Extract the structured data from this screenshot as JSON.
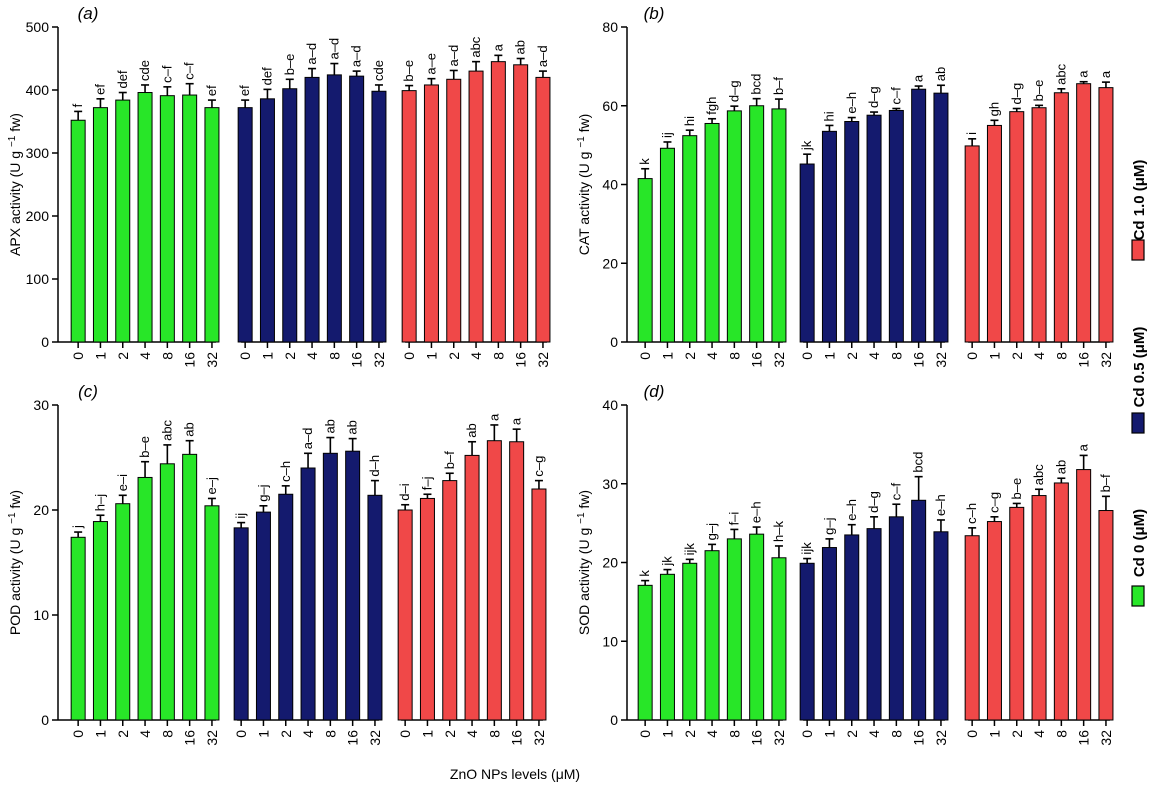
{
  "chart_data": [
    {
      "type": "bar",
      "panel": "(a)",
      "ylabel": "APX activity (U g⁻¹ fw)",
      "ylim": [
        0,
        500
      ],
      "yticks": [
        0,
        100,
        200,
        300,
        400,
        500
      ],
      "groups": [
        {
          "name": "Cd 0 (μM)",
          "categories": [
            "0",
            "1",
            "2",
            "4",
            "8",
            "16",
            "32"
          ],
          "values": [
            352,
            372,
            384,
            396,
            391,
            392,
            372
          ],
          "errors": [
            14,
            14,
            12,
            12,
            14,
            18,
            12
          ],
          "labels": [
            "f",
            "ef",
            "def",
            "cde",
            "c–f",
            "c–f",
            "ef"
          ]
        },
        {
          "name": "Cd 0.5 (μM)",
          "categories": [
            "0",
            "1",
            "2",
            "4",
            "8",
            "16",
            "32"
          ],
          "values": [
            372,
            386,
            402,
            420,
            424,
            422,
            398
          ],
          "errors": [
            12,
            15,
            15,
            14,
            18,
            8,
            10
          ],
          "labels": [
            "ef",
            "def",
            "b–e",
            "a–d",
            "a–d",
            "a–d",
            "cde"
          ]
        },
        {
          "name": "Cd 1.0 (μM)",
          "categories": [
            "0",
            "1",
            "2",
            "4",
            "8",
            "16",
            "32"
          ],
          "values": [
            399,
            408,
            417,
            430,
            445,
            440,
            420
          ],
          "errors": [
            8,
            10,
            14,
            15,
            10,
            10,
            10
          ],
          "labels": [
            "b–e",
            "a–e",
            "a–d",
            "abc",
            "a",
            "ab",
            "a–d"
          ]
        }
      ]
    },
    {
      "type": "bar",
      "panel": "(b)",
      "ylabel": "CAT activity (U g⁻¹ fw)",
      "ylim": [
        0,
        80
      ],
      "yticks": [
        0,
        20,
        40,
        60,
        80
      ],
      "groups": [
        {
          "name": "Cd 0 (μM)",
          "categories": [
            "0",
            "1",
            "2",
            "4",
            "8",
            "16",
            "32"
          ],
          "values": [
            41.5,
            49.2,
            52.4,
            55.5,
            58.7,
            60,
            59.2
          ],
          "errors": [
            2.5,
            1.6,
            1.4,
            1.2,
            1.2,
            1.8,
            2.5
          ],
          "labels": [
            "k",
            "ij",
            "hi",
            "fgh",
            "d–g",
            "bcd",
            "b–f"
          ]
        },
        {
          "name": "Cd 0.5 (μM)",
          "categories": [
            "0",
            "1",
            "2",
            "4",
            "8",
            "16",
            "32"
          ],
          "values": [
            45.2,
            53.5,
            56,
            57.6,
            58.8,
            64.2,
            63.2
          ],
          "errors": [
            2.5,
            1.5,
            1,
            0.8,
            0.5,
            0.8,
            2
          ],
          "labels": [
            "jk",
            "hi",
            "e–h",
            "d–g",
            "c–f",
            "a",
            "ab"
          ]
        },
        {
          "name": "Cd 1.0 (μM)",
          "categories": [
            "0",
            "1",
            "2",
            "4",
            "8",
            "16",
            "32"
          ],
          "values": [
            49.8,
            55,
            58.5,
            59.5,
            63.3,
            65.6,
            64.6
          ],
          "errors": [
            1.8,
            1.3,
            0.8,
            0.6,
            1.0,
            0.5,
            1.4
          ],
          "labels": [
            "i",
            "gh",
            "d–g",
            "b–e",
            "abc",
            "a",
            "a"
          ]
        }
      ]
    },
    {
      "type": "bar",
      "panel": "(c)",
      "ylabel": "POD activity (U g⁻¹ fw)",
      "ylim": [
        0,
        30
      ],
      "yticks": [
        0,
        10,
        20,
        30
      ],
      "groups": [
        {
          "name": "Cd 0 (μM)",
          "categories": [
            "0",
            "1",
            "2",
            "4",
            "8",
            "16",
            "32"
          ],
          "values": [
            17.4,
            18.9,
            20.6,
            23.1,
            24.4,
            25.3,
            20.4
          ],
          "errors": [
            0.5,
            0.6,
            0.8,
            1.5,
            1.8,
            1.3,
            0.7
          ],
          "labels": [
            "j",
            "h–j",
            "e–i",
            "b–e",
            "abc",
            "ab",
            "e–j"
          ]
        },
        {
          "name": "Cd 0.5 (μM)",
          "categories": [
            "0",
            "1",
            "2",
            "4",
            "8",
            "16",
            "32"
          ],
          "values": [
            18.3,
            19.8,
            21.5,
            24.0,
            25.4,
            25.6,
            21.4
          ],
          "errors": [
            0.5,
            0.6,
            0.8,
            1.4,
            1.5,
            1.2,
            1.4
          ],
          "labels": [
            "ij",
            "g–j",
            "c–h",
            "a–d",
            "ab",
            "ab",
            "d–h"
          ]
        },
        {
          "name": "Cd 1.0 (μM)",
          "categories": [
            "0",
            "1",
            "2",
            "4",
            "8",
            "16",
            "32"
          ],
          "values": [
            20.0,
            21.1,
            22.8,
            25.2,
            26.6,
            26.5,
            22.0
          ],
          "errors": [
            0.5,
            0.4,
            0.7,
            1.3,
            1.5,
            1.2,
            0.8
          ],
          "labels": [
            "d–i",
            "f–j",
            "b–f",
            "ab",
            "a",
            "a",
            "c–g"
          ]
        }
      ]
    },
    {
      "type": "bar",
      "panel": "(d)",
      "ylabel": "SOD activity (U g⁻¹ fw)",
      "ylim": [
        0,
        40
      ],
      "yticks": [
        0,
        10,
        20,
        30,
        40
      ],
      "groups": [
        {
          "name": "Cd 0 (μM)",
          "categories": [
            "0",
            "1",
            "2",
            "4",
            "8",
            "16",
            "32"
          ],
          "values": [
            17.1,
            18.5,
            19.9,
            21.5,
            23.0,
            23.6,
            20.6
          ],
          "errors": [
            0.6,
            0.6,
            0.5,
            0.8,
            1.2,
            0.9,
            1.5
          ],
          "labels": [
            "k",
            "jk",
            "ijk",
            "g–j",
            "f–i",
            "e–h",
            "h–k"
          ]
        },
        {
          "name": "Cd 0.5 (μM)",
          "categories": [
            "0",
            "1",
            "2",
            "4",
            "8",
            "16",
            "32"
          ],
          "values": [
            19.9,
            21.9,
            23.5,
            24.3,
            25.8,
            27.9,
            23.9
          ],
          "errors": [
            0.6,
            1.1,
            1.3,
            1.5,
            1.6,
            3.0,
            1.5
          ],
          "labels": [
            "ijk",
            "g–j",
            "e–h",
            "d–g",
            "c–f",
            "bcd",
            "e–h"
          ]
        },
        {
          "name": "Cd 1.0 (μM)",
          "categories": [
            "0",
            "1",
            "2",
            "4",
            "8",
            "16",
            "32"
          ],
          "values": [
            23.4,
            25.2,
            27.0,
            28.5,
            30.1,
            31.8,
            26.6
          ],
          "errors": [
            1.0,
            0.6,
            0.5,
            0.8,
            0.6,
            1.8,
            1.8
          ],
          "labels": [
            "c–h",
            "c–g",
            "b–e",
            "abc",
            "ab",
            "a",
            "b–f"
          ]
        }
      ]
    }
  ],
  "legend": {
    "items": [
      {
        "name": "Cd 1.0 (μM)",
        "color": "#f04848"
      },
      {
        "name": "Cd 0.5 (μM)",
        "color": "#141a6e"
      },
      {
        "name": "Cd 0 (μM)",
        "color": "#28e628"
      }
    ],
    "placement": "right"
  },
  "xlabel": "ZnO NPs levels (μM)",
  "colors": {
    "Cd 0 (μM)": "#28e628",
    "Cd 0.5 (μM)": "#141a6e",
    "Cd 1.0 (μM)": "#f04848"
  }
}
